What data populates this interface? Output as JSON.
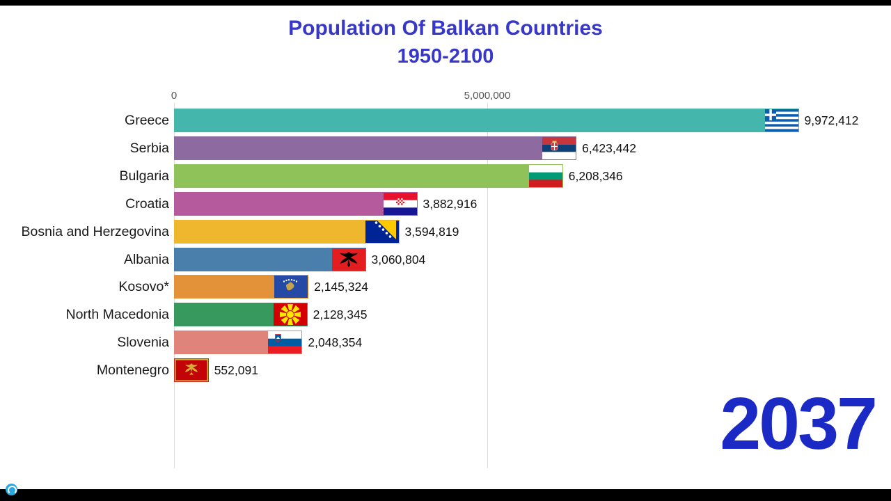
{
  "title": {
    "line1": "Population Of Balkan Countries",
    "line2": "1950-2100"
  },
  "axis": {
    "ticks": [
      "0",
      "5,000,000"
    ]
  },
  "theme": {
    "title_color": "#3838c8",
    "year_color": "#1c2ac5",
    "watermark_color": "#2aa7de"
  },
  "chart_data": {
    "type": "bar",
    "orientation": "horizontal",
    "title": "Population Of Balkan Countries",
    "subtitle": "1950-2100",
    "year": "2037",
    "xlabel": "",
    "ylabel": "",
    "x_ticks": [
      0,
      5000000
    ],
    "xlim": [
      0,
      11500000
    ],
    "grid": "vertical-only",
    "legend": "none",
    "unit": "people",
    "countries": [
      {
        "name": "Greece",
        "value": 9972412,
        "label": "9,972,412",
        "color": "#45b6ac",
        "flag": "greece"
      },
      {
        "name": "Serbia",
        "value": 6423442,
        "label": "6,423,442",
        "color": "#8d6a9f",
        "flag": "serbia"
      },
      {
        "name": "Bulgaria",
        "value": 6208346,
        "label": "6,208,346",
        "color": "#8fc35a",
        "flag": "bulgaria"
      },
      {
        "name": "Croatia",
        "value": 3882916,
        "label": "3,882,916",
        "color": "#b45a9d",
        "flag": "croatia"
      },
      {
        "name": "Bosnia and Herzegovina",
        "value": 3594819,
        "label": "3,594,819",
        "color": "#efb72e",
        "flag": "bosnia"
      },
      {
        "name": "Albania",
        "value": 3060804,
        "label": "3,060,804",
        "color": "#4a7fab",
        "flag": "albania"
      },
      {
        "name": "Kosovo*",
        "value": 2145324,
        "label": "2,145,324",
        "color": "#e3923a",
        "flag": "kosovo"
      },
      {
        "name": "North Macedonia",
        "value": 2128345,
        "label": "2,128,345",
        "color": "#38995f",
        "flag": "north_macedonia"
      },
      {
        "name": "Slovenia",
        "value": 2048354,
        "label": "2,048,354",
        "color": "#e0837a",
        "flag": "slovenia"
      },
      {
        "name": "Montenegro",
        "value": 552091,
        "label": "552,091",
        "color": "#c52a1c",
        "flag": "montenegro"
      }
    ]
  }
}
